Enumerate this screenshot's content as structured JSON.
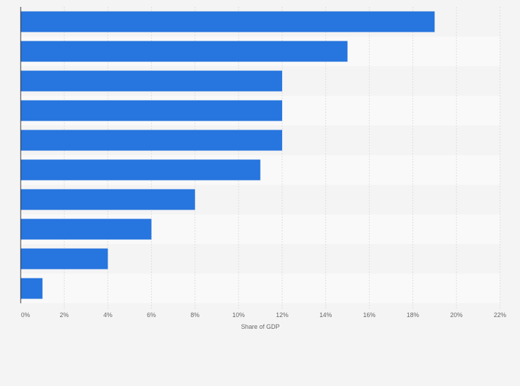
{
  "chart_data": {
    "type": "bar",
    "orientation": "horizontal",
    "categories": [
      "",
      "",
      "",
      "",
      "",
      "",
      "",
      "",
      "",
      ""
    ],
    "values": [
      19,
      15,
      12,
      12,
      12,
      11,
      8,
      6,
      4,
      1
    ],
    "xlabel": "Share of GDP",
    "ylabel": "",
    "xlim": [
      0,
      22
    ],
    "x_ticks": [
      "0%",
      "2%",
      "4%",
      "6%",
      "8%",
      "10%",
      "12%",
      "14%",
      "16%",
      "18%",
      "20%",
      "22%"
    ],
    "grid": true,
    "bar_color": "#2775de",
    "band_colors": [
      "#f4f4f4",
      "#f9f9f9"
    ],
    "background_color": "#f4f4f4"
  }
}
